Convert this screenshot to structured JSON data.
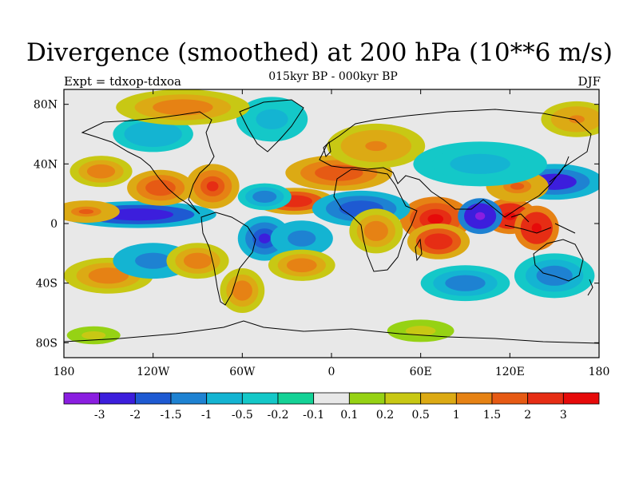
{
  "figure": {
    "title": "Divergence (smoothed) at 200 hPa (10**6 m/s)",
    "subtitle": "015kyr BP - 000kyr BP",
    "left_label": "Expt = tdxop-tdxoa",
    "right_label": "DJF"
  },
  "map": {
    "projection": "cylindrical-equidistant",
    "lon_range": [
      -180,
      180
    ],
    "lat_range": [
      -90,
      90
    ],
    "lon_ticks": [
      {
        "value": -180,
        "label": "180"
      },
      {
        "value": -120,
        "label": "120W"
      },
      {
        "value": -60,
        "label": "60W"
      },
      {
        "value": 0,
        "label": "0"
      },
      {
        "value": 60,
        "label": "60E"
      },
      {
        "value": 120,
        "label": "120E"
      },
      {
        "value": 180,
        "label": "180"
      }
    ],
    "lat_ticks": [
      {
        "value": 80,
        "label": "80N"
      },
      {
        "value": 40,
        "label": "40N"
      },
      {
        "value": 0,
        "label": "0"
      },
      {
        "value": -40,
        "label": "40S"
      },
      {
        "value": -80,
        "label": "80S"
      }
    ],
    "background_color": "#e8e8e8",
    "coastline_color": "#000000"
  },
  "colorbar": {
    "labels": [
      "-3",
      "-2",
      "-1.5",
      "-1",
      "-0.5",
      "-0.2",
      "-0.1",
      "0.1",
      "0.2",
      "0.5",
      "1",
      "1.5",
      "2",
      "3"
    ],
    "colors": [
      "#8a1ee0",
      "#3c1edc",
      "#1e5ad2",
      "#1e82d2",
      "#14b4d2",
      "#14c8c8",
      "#14d296",
      "#e8e8e8",
      "#96d214",
      "#c8c814",
      "#dcaa14",
      "#e68214",
      "#e65a14",
      "#e62d14",
      "#e60a0a"
    ]
  },
  "chart_data": {
    "type": "heatmap",
    "field": "200 hPa divergence difference, smoothed, DJF",
    "units": "10**6 m/s",
    "levels": [
      -3,
      -2,
      -1.5,
      -1,
      -0.5,
      -0.2,
      -0.1,
      0.1,
      0.2,
      0.5,
      1,
      1.5,
      2,
      3
    ],
    "features": [
      {
        "lon": 120,
        "lat": 5,
        "rx": 12,
        "ry": 8,
        "value": 3.5
      },
      {
        "lon": 138,
        "lat": -3,
        "rx": 10,
        "ry": 10,
        "value": 3.5
      },
      {
        "lon": 70,
        "lat": 3,
        "rx": 16,
        "ry": 10,
        "value": 3.2
      },
      {
        "lon": 72,
        "lat": -12,
        "rx": 14,
        "ry": 8,
        "value": 2.5
      },
      {
        "lon": 100,
        "lat": 5,
        "rx": 10,
        "ry": 8,
        "value": -3.5
      },
      {
        "lon": 150,
        "lat": 28,
        "rx": 22,
        "ry": 8,
        "value": -2.5
      },
      {
        "lon": 125,
        "lat": 25,
        "rx": 14,
        "ry": 7,
        "value": 1.6
      },
      {
        "lon": -130,
        "lat": 6,
        "rx": 35,
        "ry": 6,
        "value": -2.8
      },
      {
        "lon": -165,
        "lat": 8,
        "rx": 15,
        "ry": 5,
        "value": 1.6
      },
      {
        "lon": -155,
        "lat": 35,
        "rx": 14,
        "ry": 7,
        "value": 1.2
      },
      {
        "lon": -115,
        "lat": 24,
        "rx": 15,
        "ry": 8,
        "value": 1.8
      },
      {
        "lon": -80,
        "lat": 25,
        "rx": 12,
        "ry": 10,
        "value": 2.2
      },
      {
        "lon": -25,
        "lat": 15,
        "rx": 18,
        "ry": 6,
        "value": 2.5
      },
      {
        "lon": -45,
        "lat": 18,
        "rx": 12,
        "ry": 6,
        "value": -1.2
      },
      {
        "lon": -45,
        "lat": -10,
        "rx": 12,
        "ry": 10,
        "value": -2.2
      },
      {
        "lon": -20,
        "lat": -10,
        "rx": 14,
        "ry": 8,
        "value": -1.5
      },
      {
        "lon": -20,
        "lat": -28,
        "rx": 15,
        "ry": 7,
        "value": 1.2
      },
      {
        "lon": 20,
        "lat": 10,
        "rx": 22,
        "ry": 8,
        "value": -1.8
      },
      {
        "lon": 30,
        "lat": -5,
        "rx": 12,
        "ry": 10,
        "value": 1.3
      },
      {
        "lon": 5,
        "lat": 34,
        "rx": 24,
        "ry": 8,
        "value": 1.8
      },
      {
        "lon": 30,
        "lat": 52,
        "rx": 22,
        "ry": 10,
        "value": 1.0
      },
      {
        "lon": -120,
        "lat": 60,
        "rx": 18,
        "ry": 8,
        "value": -1.0
      },
      {
        "lon": -40,
        "lat": 70,
        "rx": 16,
        "ry": 10,
        "value": -0.8
      },
      {
        "lon": -100,
        "lat": 78,
        "rx": 30,
        "ry": 8,
        "value": 1.2
      },
      {
        "lon": -150,
        "lat": -35,
        "rx": 20,
        "ry": 8,
        "value": 1.3
      },
      {
        "lon": -120,
        "lat": -25,
        "rx": 18,
        "ry": 8,
        "value": -1.5
      },
      {
        "lon": -90,
        "lat": -25,
        "rx": 14,
        "ry": 8,
        "value": 1.2
      },
      {
        "lon": 150,
        "lat": -35,
        "rx": 18,
        "ry": 10,
        "value": -1.3
      },
      {
        "lon": 90,
        "lat": -40,
        "rx": 20,
        "ry": 8,
        "value": -1.2
      },
      {
        "lon": -60,
        "lat": -45,
        "rx": 10,
        "ry": 10,
        "value": 1.3
      },
      {
        "lon": 100,
        "lat": 40,
        "rx": 30,
        "ry": 10,
        "value": -0.8
      },
      {
        "lon": 165,
        "lat": 70,
        "rx": 16,
        "ry": 8,
        "value": 1.0
      },
      {
        "lon": -160,
        "lat": -75,
        "rx": 12,
        "ry": 4,
        "value": 0.3
      },
      {
        "lon": 60,
        "lat": -72,
        "rx": 15,
        "ry": 5,
        "value": 0.3
      }
    ]
  }
}
